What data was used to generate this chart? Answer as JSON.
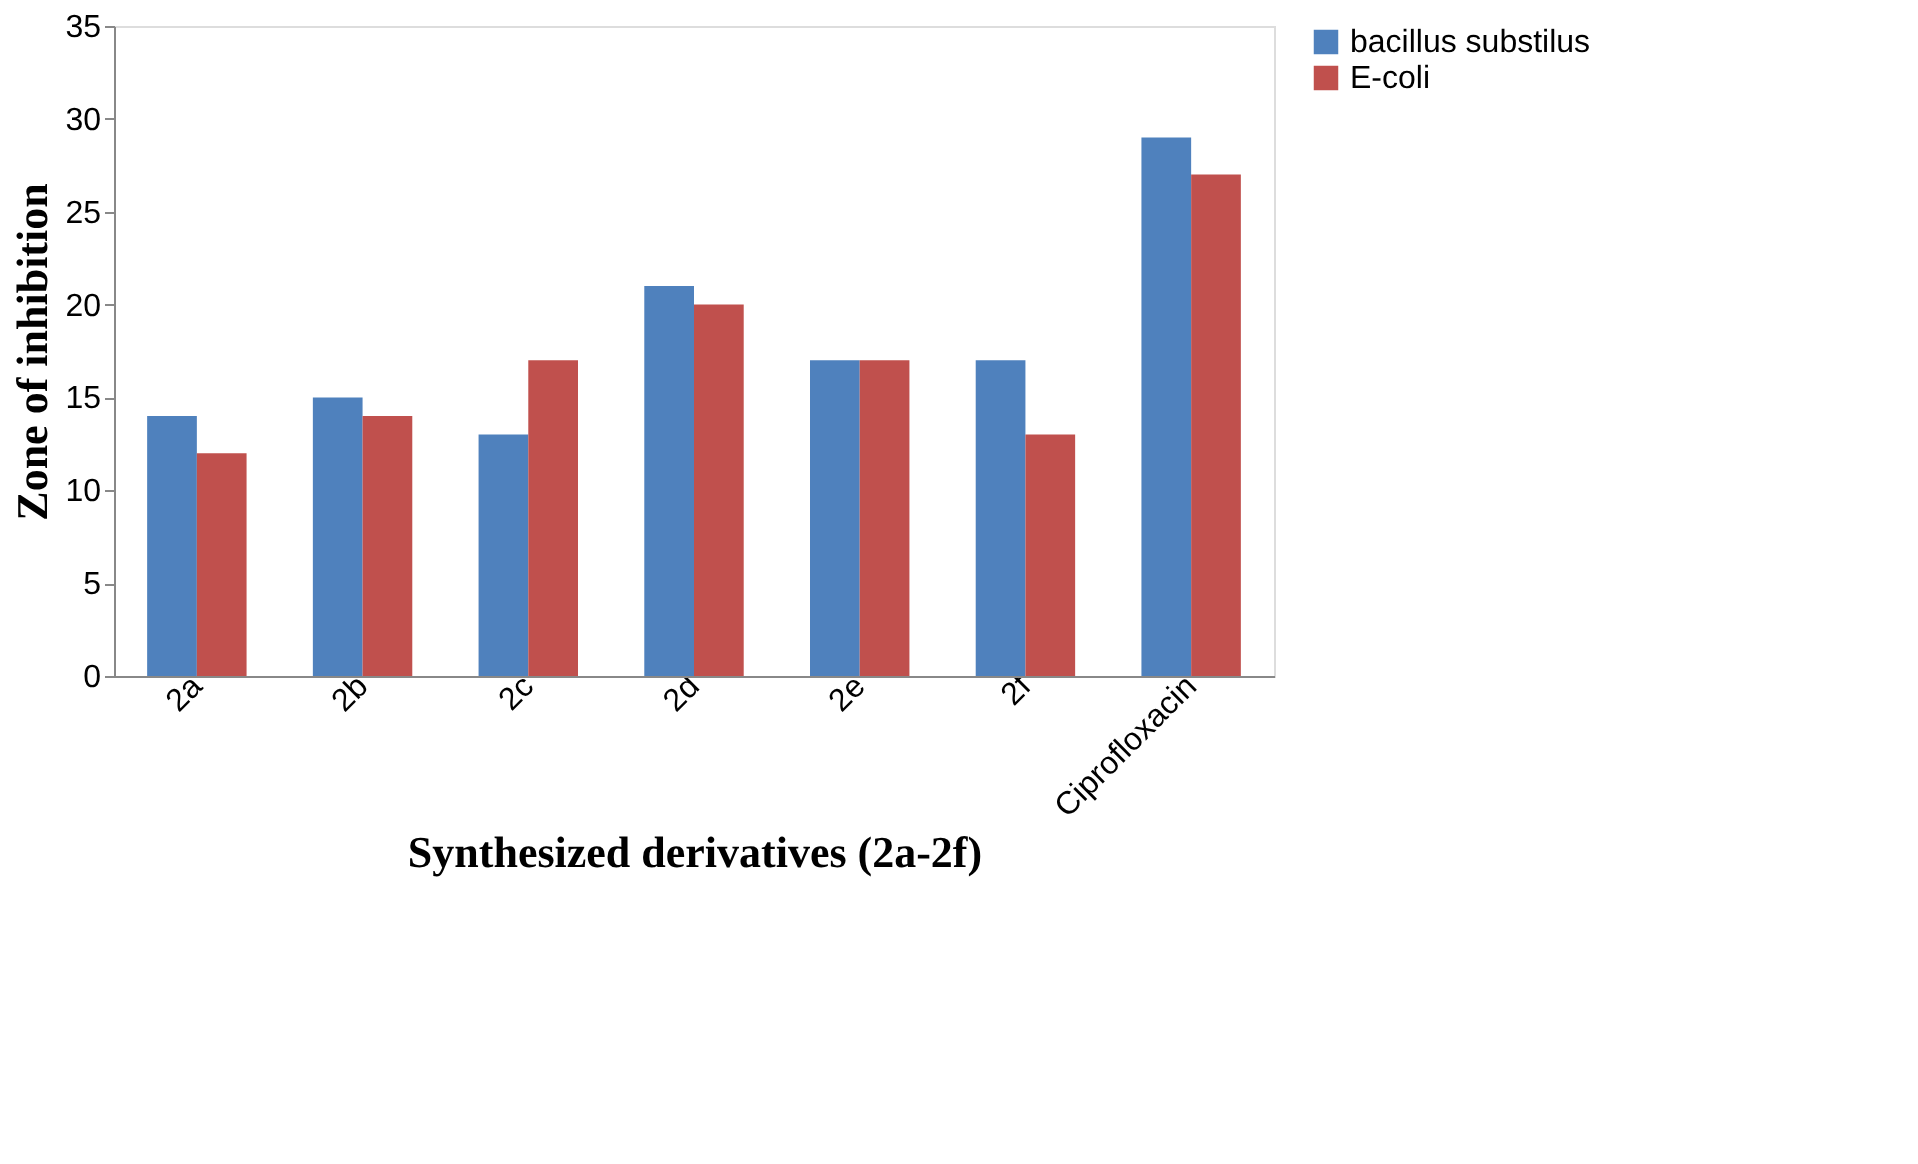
{
  "chart_data": {
    "type": "bar",
    "xlabel": "Synthesized  derivatives (2a-2f)",
    "ylabel": "Zone of inhibition",
    "categories": [
      "2a",
      "2b",
      "2c",
      "2d",
      "2e",
      "2f",
      "Ciprofloxacin"
    ],
    "series": [
      {
        "name": "bacillus substilus",
        "color": "#4f81bd",
        "values": [
          14,
          15,
          13,
          21,
          17,
          17,
          29
        ]
      },
      {
        "name": "E-coli",
        "color": "#c0504d",
        "values": [
          12,
          14,
          17,
          20,
          17,
          13,
          27
        ]
      }
    ],
    "ylim": [
      0,
      35
    ],
    "yticks": [
      0,
      5,
      10,
      15,
      20,
      25,
      30,
      35
    ],
    "grid": false,
    "legend": "right"
  }
}
